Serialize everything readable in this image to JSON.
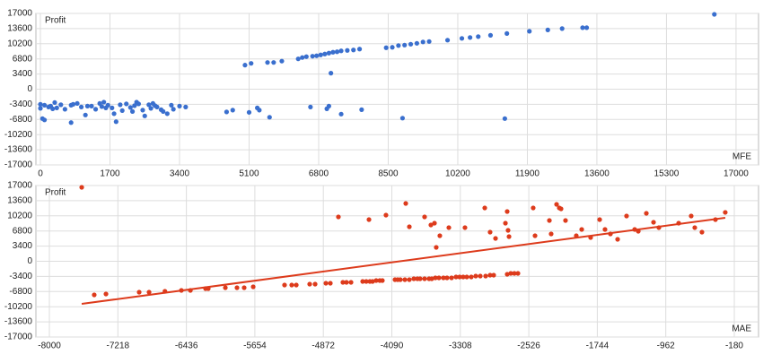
{
  "chart_data": [
    {
      "type": "scatter",
      "ylabel": "Profit",
      "xlabel": "MFE",
      "color": "#3a6fce",
      "grid": true,
      "xlim": [
        -110,
        17550
      ],
      "ylim": [
        -17000,
        17000
      ],
      "xticks": [
        0,
        1700,
        3400,
        5100,
        6800,
        8500,
        10200,
        11900,
        13600,
        15300,
        17000
      ],
      "yticks": [
        17000,
        13600,
        10200,
        6800,
        3400,
        0,
        -3400,
        -6800,
        -10200,
        -13600,
        -17000
      ],
      "x": [
        0,
        0,
        50,
        100,
        200,
        250,
        350,
        400,
        100,
        500,
        600,
        750,
        800,
        750,
        900,
        1000,
        1100,
        1250,
        1350,
        1450,
        1500,
        1550,
        1650,
        1750,
        1800,
        1850,
        1950,
        2000,
        2100,
        2200,
        2250,
        2300,
        2350,
        2400,
        2500,
        2550,
        2700,
        2750,
        2800,
        2850,
        2950,
        3000,
        3100,
        3200,
        3250,
        3400,
        3550,
        1150,
        1600,
        2650,
        300,
        4550,
        4700,
        5000,
        5150,
        5100,
        5300,
        5350,
        5600,
        5550,
        5700,
        5900,
        6300,
        6400,
        6500,
        6650,
        6750,
        6850,
        6950,
        7050,
        7150,
        7250,
        7350,
        7500,
        7650,
        7800,
        6600,
        7000,
        7050,
        7100,
        7350,
        7850,
        8450,
        8600,
        8750,
        8900,
        9050,
        9200,
        9350,
        9500,
        8850,
        9950,
        10300,
        10500,
        10700,
        11000,
        11400,
        11350,
        11950,
        12400,
        12750,
        13250,
        13350,
        16470
      ],
      "values": [
        -3400,
        -4300,
        -6600,
        -3600,
        -4000,
        -3800,
        -3000,
        -4200,
        -6900,
        -3500,
        -4500,
        -3600,
        -3400,
        -7500,
        -3200,
        -4000,
        -5800,
        -3800,
        -4500,
        -3200,
        -3900,
        -2900,
        -3600,
        -4200,
        -5500,
        -7300,
        -3500,
        -4800,
        -3300,
        -4100,
        -5000,
        -3700,
        -2900,
        -3300,
        -4700,
        -6000,
        -4300,
        -3200,
        -3700,
        -4000,
        -4600,
        -5000,
        -5500,
        -3600,
        -4500,
        -3800,
        -4000,
        -3800,
        -4200,
        -3500,
        -4400,
        -5100,
        -4700,
        5400,
        5800,
        -5200,
        -4200,
        -4700,
        -6300,
        6000,
        6000,
        6300,
        6800,
        7100,
        7300,
        7400,
        7500,
        7700,
        7900,
        8100,
        8300,
        8400,
        8600,
        8700,
        8800,
        9000,
        -4000,
        -4400,
        -3800,
        3600,
        -5600,
        -4600,
        9300,
        9400,
        9800,
        9900,
        10100,
        10300,
        10600,
        10700,
        -6500,
        11000,
        11400,
        11600,
        11800,
        12100,
        12500,
        -6600,
        13000,
        13300,
        13600,
        13800,
        13800,
        16800
      ]
    },
    {
      "type": "scatter",
      "ylabel": "Profit",
      "xlabel": "MAE",
      "color": "#dd3b1c",
      "grid": true,
      "xlim": [
        -8154,
        97
      ],
      "ylim": [
        -17000,
        17000
      ],
      "xticks": [
        -8000,
        -7218,
        -6436,
        -5654,
        -4872,
        -4090,
        -3308,
        -2526,
        -1744,
        -962,
        -180
      ],
      "yticks": [
        17000,
        13600,
        10200,
        6800,
        3400,
        0,
        -3400,
        -6800,
        -10200,
        -13600,
        -17000
      ],
      "x": [
        -7631,
        -4700,
        -4351,
        -4157,
        -3931,
        -3890,
        -3716,
        -3644,
        -3603,
        -3583,
        -3542,
        -3439,
        -3255,
        -3029,
        -2968,
        -2906,
        -2793,
        -2773,
        -2763,
        -2752,
        -2476,
        -2455,
        -2291,
        -2271,
        -2209,
        -2178,
        -2158,
        -2107,
        -1984,
        -1922,
        -1820,
        -1717,
        -1656,
        -1594,
        -1512,
        -1410,
        -1317,
        -1276,
        -1184,
        -1102,
        -1041,
        -815,
        -672,
        -631,
        -549,
        -395,
        -283,
        -7488,
        -7354,
        -6975,
        -6862,
        -6681,
        -6493,
        -6390,
        -6217,
        -6186,
        -5991,
        -5858,
        -5776,
        -5673,
        -5315,
        -5233,
        -5181,
        -5028,
        -4966,
        -4843,
        -4792,
        -4649,
        -4608,
        -4556,
        -4423,
        -4382,
        -4341,
        -4310,
        -4269,
        -4228,
        -4198,
        -4054,
        -4023,
        -3993,
        -3941,
        -3890,
        -3839,
        -3798,
        -3767,
        -3716,
        -3665,
        -3634,
        -3593,
        -3552,
        -3501,
        -3460,
        -3408,
        -3357,
        -3316,
        -3275,
        -3234,
        -3183,
        -3132,
        -3080,
        -3019,
        -2968,
        -2927,
        -2773,
        -2732,
        -2691,
        -2650
      ],
      "values": [
        16600,
        9960,
        9360,
        10360,
        12980,
        7750,
        9960,
        8150,
        8550,
        3120,
        5730,
        7550,
        7550,
        11970,
        6540,
        5130,
        8550,
        11170,
        6940,
        5530,
        11970,
        5730,
        9150,
        6140,
        12780,
        11970,
        11770,
        9150,
        5730,
        7140,
        5330,
        9360,
        7140,
        6140,
        4930,
        10160,
        7140,
        6740,
        10760,
        8750,
        7550,
        8550,
        10160,
        7550,
        6540,
        9360,
        10970,
        -7545,
        -7344,
        -6942,
        -6942,
        -6740,
        -6540,
        -6540,
        -6137,
        -6137,
        -5936,
        -5936,
        -5936,
        -5734,
        -5332,
        -5332,
        -5332,
        -5131,
        -5131,
        -4929,
        -4929,
        -4728,
        -4728,
        -4728,
        -4527,
        -4527,
        -4527,
        -4527,
        -4326,
        -4326,
        -4326,
        -4124,
        -4124,
        -4124,
        -4124,
        -4124,
        -3923,
        -3923,
        -3923,
        -3923,
        -3923,
        -3923,
        -3722,
        -3722,
        -3722,
        -3722,
        -3722,
        -3521,
        -3521,
        -3521,
        -3521,
        -3521,
        -3320,
        -3320,
        -3320,
        -3119,
        -3119,
        -2917,
        -2716,
        -2716,
        -2716
      ],
      "trendline": {
        "x": [
          -7631,
          -283
        ],
        "values": [
          -9560,
          9760
        ]
      }
    }
  ]
}
